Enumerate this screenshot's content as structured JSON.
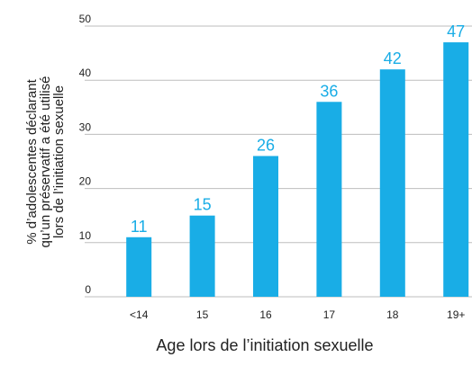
{
  "chart_data": {
    "type": "bar",
    "ylabel": [
      "% d’adolescentes déclarant",
      "qu’un préservatif a été utilisé",
      "lors de l’initiation sexuelle"
    ],
    "xlabel": "Age lors de l’initiation sexuelle",
    "categories": [
      "<14",
      "15",
      "16",
      "17",
      "18",
      "19+"
    ],
    "values": [
      11,
      15,
      26,
      36,
      42,
      47
    ],
    "color": "#19ade6",
    "ylim": [
      0,
      50
    ],
    "yticks": [
      0,
      10,
      20,
      30,
      40,
      50
    ],
    "grid": true
  }
}
